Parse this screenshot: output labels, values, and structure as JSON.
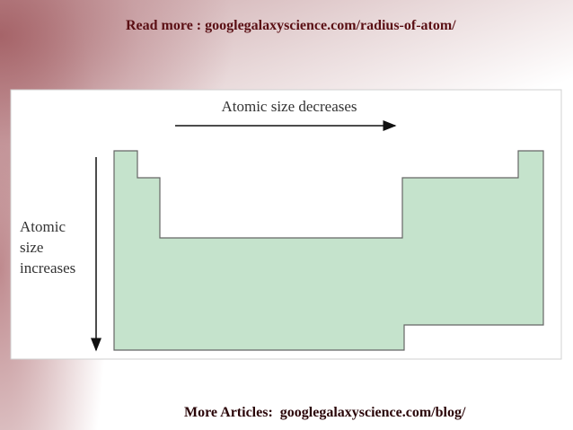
{
  "header": {
    "text": "Read more : googlegalaxyscience.com/radius-of-atom/"
  },
  "diagram": {
    "horizontal_label": "Atomic size decreases",
    "vertical_label": [
      "Atomic",
      "size",
      "increases"
    ]
  },
  "footer": {
    "text": "More Articles:  googlegalaxyscience.com/blog/"
  }
}
